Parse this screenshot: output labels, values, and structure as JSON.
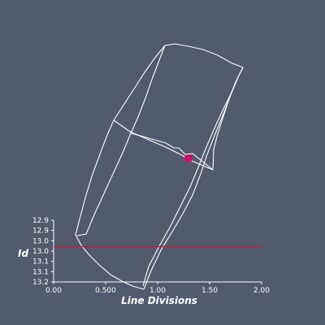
{
  "viewport": {
    "background": "#525a6e",
    "wireframe_color": "#ffffff",
    "marker_color": "#d0106a"
  },
  "chart_data": {
    "type": "line",
    "xlabel": "Line Divisions",
    "ylabel": "Id",
    "x_ticks": [
      "0.00",
      "0.500",
      "1.00",
      "1.50",
      "2.00"
    ],
    "y_ticks": [
      "12.9",
      "12.9",
      "13.0",
      "13.0",
      "13.1",
      "13.1",
      "13.2"
    ],
    "xlim": [
      0,
      2
    ],
    "ylim": [
      12.85,
      13.2
    ],
    "series": [
      {
        "color": "#c0202a",
        "x": [
          0,
          2
        ],
        "y": [
          13.0,
          13.0
        ]
      }
    ]
  }
}
